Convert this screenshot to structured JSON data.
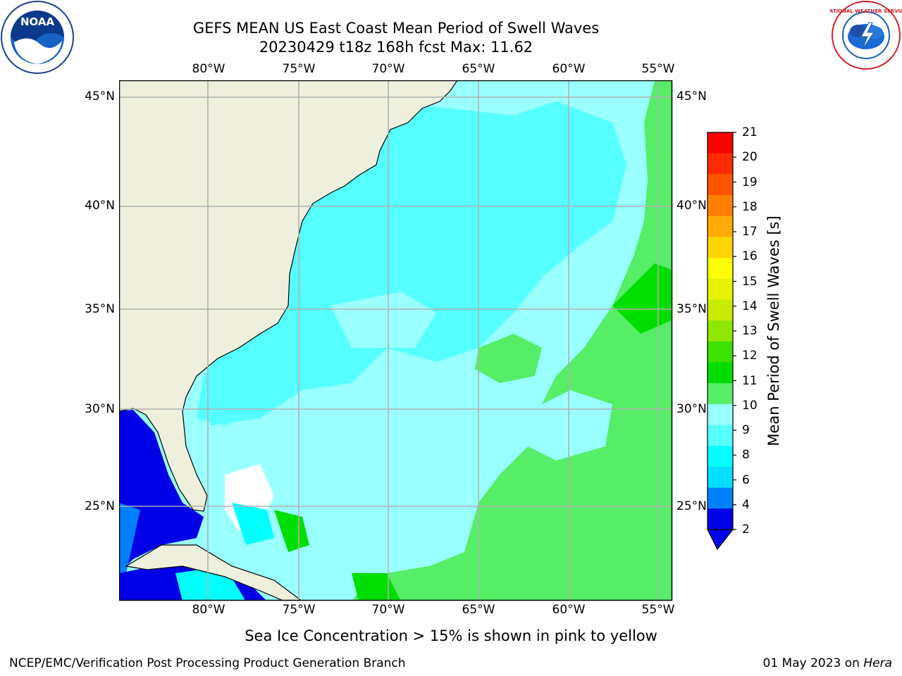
{
  "title": {
    "line1": "GEFS MEAN US East Coast Mean Period of Swell Waves",
    "line2": "20230429 t18z 168h fcst   Max: 11.62"
  },
  "map": {
    "lon_labels": [
      "80°W",
      "75°W",
      "70°W",
      "65°W",
      "60°W",
      "55°W"
    ],
    "lat_labels": [
      "45°N",
      "40°N",
      "35°N",
      "30°N",
      "25°N"
    ],
    "grid_color": "#b0b0b0",
    "land_color": "#efefde"
  },
  "colorbar": {
    "label": "Mean Period of Swell Waves [s]",
    "ticks": [
      "21",
      "20",
      "19",
      "18",
      "17",
      "16",
      "15",
      "14",
      "13",
      "12",
      "11",
      "10",
      "9",
      "8",
      "6",
      "4",
      "2"
    ],
    "colors": [
      "#ff0000",
      "#ff2a00",
      "#ff5500",
      "#ff8000",
      "#ffaa00",
      "#ffd500",
      "#ffff00",
      "#e5f500",
      "#c8eb00",
      "#8fe600",
      "#3ee000",
      "#00dd00",
      "#55ee66",
      "#99ffff",
      "#55ffff",
      "#00ffff",
      "#00dfff",
      "#0080ff",
      "#0000e6"
    ],
    "extend_color": "#0000ee"
  },
  "footer": {
    "sea_ice_note": "Sea Ice Concentration > 15% is shown in pink to yellow",
    "credit": "NCEP/EMC/Verification Post Processing Product Generation Branch",
    "date": "01 May 2023 on",
    "machine": "Hera"
  },
  "logos": {
    "noaa_text": "NOAA",
    "nws_text": "NATIONAL WEATHER SERVICE"
  }
}
